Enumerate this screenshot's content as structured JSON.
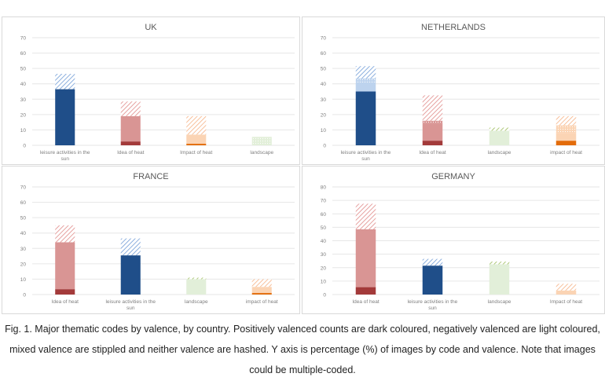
{
  "caption": "Fig. 1. Major thematic codes by valence, by country. Positively valenced counts are dark coloured, negatively valenced are light coloured, mixed valence are stippled and neither valence are hashed. Y axis is percentage (%) of images by code and valence. Note that images could be multiple-coded.",
  "colors": {
    "leisure": {
      "dark": "#1f4e89",
      "light": "#bdd3ee",
      "hash": "#6f9bd6"
    },
    "heat": {
      "dark": "#a33a3a",
      "light": "#d99594",
      "hash": "#e08a88"
    },
    "impact": {
      "dark": "#e36c0a",
      "light": "#fbd4b4",
      "hash": "#f6b183"
    },
    "landscape": {
      "dark": "#77933c",
      "light": "#e2efd9",
      "hash": "#9bbb59"
    }
  },
  "chart_data": [
    {
      "type": "bar",
      "stacked": true,
      "title": "UK",
      "ylim": [
        0,
        70
      ],
      "yticks": [
        0,
        10,
        20,
        30,
        40,
        50,
        60,
        70
      ],
      "stack_order": [
        "positive",
        "negative",
        "mixed",
        "neither"
      ],
      "bars": [
        {
          "label": "leisure activities in the sun",
          "group": "leisure",
          "positive": 36.5,
          "negative": 0,
          "mixed": 0,
          "neither": 10
        },
        {
          "label": "Idea of heat",
          "group": "heat",
          "positive": 2.5,
          "negative": 16.5,
          "mixed": 0,
          "neither": 9.5
        },
        {
          "label": "Impact of heat",
          "group": "impact",
          "positive": 1,
          "negative": 6,
          "mixed": 0,
          "neither": 12
        },
        {
          "label": "landscape",
          "group": "landscape",
          "positive": 0,
          "negative": 0,
          "mixed": 5.5,
          "neither": 0
        }
      ]
    },
    {
      "type": "bar",
      "stacked": true,
      "title": "NETHERLANDS",
      "ylim": [
        0,
        70
      ],
      "yticks": [
        0,
        10,
        20,
        30,
        40,
        50,
        60,
        70
      ],
      "stack_order": [
        "positive",
        "negative",
        "mixed",
        "neither"
      ],
      "bars": [
        {
          "label": "leisure activities in the sun",
          "group": "leisure",
          "positive": 35,
          "negative": 6,
          "mixed": 2.5,
          "neither": 8
        },
        {
          "label": "Idea of heat",
          "group": "heat",
          "positive": 3,
          "negative": 11,
          "mixed": 2,
          "neither": 16.5
        },
        {
          "label": "landscape",
          "group": "landscape",
          "positive": 0,
          "negative": 9.5,
          "mixed": 0,
          "neither": 2
        },
        {
          "label": "impact of heat",
          "group": "impact",
          "positive": 3,
          "negative": 5,
          "mixed": 5,
          "neither": 6
        }
      ]
    },
    {
      "type": "bar",
      "stacked": true,
      "title": "FRANCE",
      "ylim": [
        0,
        70
      ],
      "yticks": [
        0,
        10,
        20,
        30,
        40,
        50,
        60,
        70
      ],
      "stack_order": [
        "positive",
        "negative",
        "mixed",
        "neither"
      ],
      "bars": [
        {
          "label": "Idea of heat",
          "group": "heat",
          "positive": 3.5,
          "negative": 30.5,
          "mixed": 0,
          "neither": 11
        },
        {
          "label": "leisure activities in the sun",
          "group": "leisure",
          "positive": 25.5,
          "negative": 0,
          "mixed": 0,
          "neither": 11
        },
        {
          "label": "landscape",
          "group": "landscape",
          "positive": 0,
          "negative": 10,
          "mixed": 0,
          "neither": 1
        },
        {
          "label": "impact of heat",
          "group": "impact",
          "positive": 1,
          "negative": 4,
          "mixed": 0,
          "neither": 5
        }
      ]
    },
    {
      "type": "bar",
      "stacked": true,
      "title": "GERMANY",
      "ylim": [
        0,
        80
      ],
      "yticks": [
        0,
        10,
        20,
        30,
        40,
        50,
        60,
        70,
        80
      ],
      "stack_order": [
        "positive",
        "negative",
        "mixed",
        "neither"
      ],
      "bars": [
        {
          "label": "Idea of heat",
          "group": "heat",
          "positive": 5.5,
          "negative": 43,
          "mixed": 0,
          "neither": 19
        },
        {
          "label": "leisure activities in the sun",
          "group": "leisure",
          "positive": 21.5,
          "negative": 0,
          "mixed": 0,
          "neither": 5
        },
        {
          "label": "landscape",
          "group": "landscape",
          "positive": 0,
          "negative": 22.5,
          "mixed": 0,
          "neither": 2
        },
        {
          "label": "Impact of heat",
          "group": "impact",
          "positive": 0,
          "negative": 3,
          "mixed": 0,
          "neither": 5
        }
      ]
    }
  ]
}
